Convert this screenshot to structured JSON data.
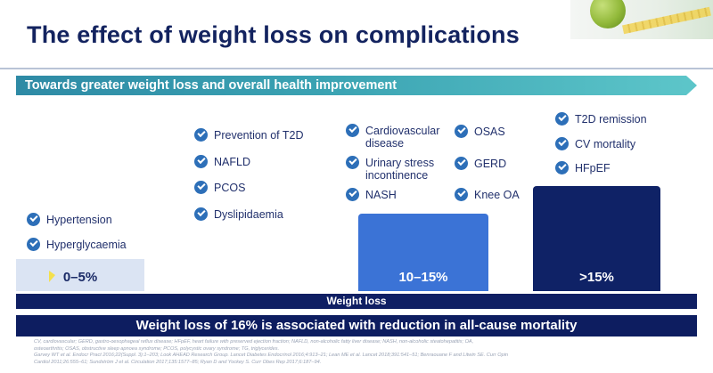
{
  "slide": {
    "title": "The effect of weight loss on complications",
    "banner": "Towards greater weight loss and overall health improvement",
    "icons": {
      "checkmark": "check-circle-icon"
    },
    "colors": {
      "title": "#13235f",
      "banner": "#3aa2b2",
      "check": "#2d6fb8",
      "bar_low": "#dbe4f3",
      "bar_mid": "#3b73d6",
      "bar_high": "#0f2266",
      "dark_bar": "#0d1d60"
    }
  },
  "groups": {
    "low": {
      "items": [
        "Hypertension",
        "Hyperglycaemia"
      ]
    },
    "moderate": {
      "items": [
        "Prevention of T2D",
        "NAFLD",
        "PCOS",
        "Dyslipidaemia"
      ]
    },
    "mid_left": {
      "items": [
        "Cardiovascular\ndisease",
        "Urinary stress\nincontinence",
        "NASH"
      ]
    },
    "mid_right": {
      "items": [
        "OSAS",
        "GERD",
        "Knee OA"
      ]
    },
    "high": {
      "items": [
        "T2D remission",
        "CV mortality",
        "HFpEF"
      ]
    }
  },
  "bars": {
    "low": "0–5%",
    "mid": "10–15%",
    "high": ">15%"
  },
  "axis_label": "Weight loss",
  "key_message": "Weight loss of 16% is associated with reduction in all-cause mortality",
  "references": [
    "CV, cardiovascular; GERD, gastro-oesophageal reflux disease; HFpEF, heart failure with preserved ejection fraction; NAFLD, non-alcoholic fatty liver disease; NASH, non-alcoholic steatohepatitis; OA,",
    "osteoarthritis; OSAS, obstructive sleep apnoea syndrome; PCOS, polycystic ovary syndrome; TG, triglycerides.",
    "Garvey WT et al. Endocr Pract 2016;22(Suppl. 3):1–203; Look AHEAD Research Group. Lancet Diabetes Endocrinol 2016;4:913–21; Lean ME et al. Lancet 2018;391:541–51; Benraouane F and Litwin SE. Curr Opin",
    "Cardiol 2011;26:555–61; Sundström J et al. Circulation 2017;135:1577–85; Ryan D and Yockey S. Curr Obes Rep 2017;6:187–94."
  ]
}
